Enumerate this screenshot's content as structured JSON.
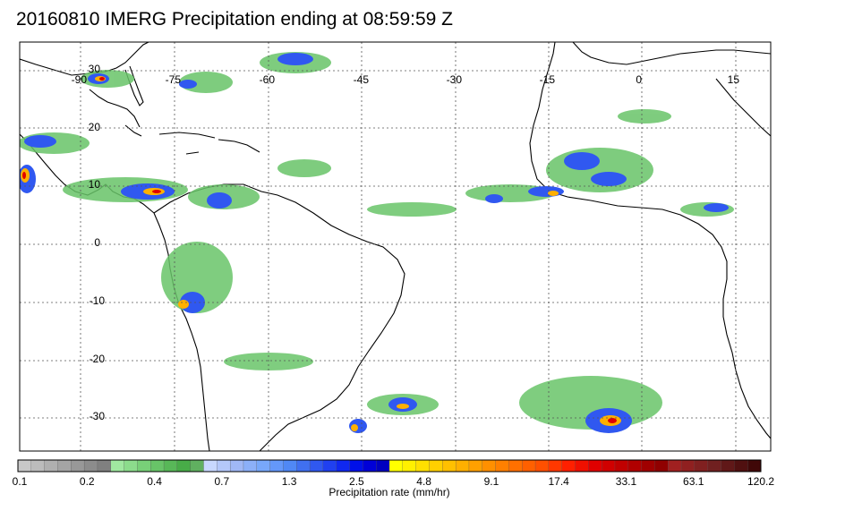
{
  "title": "20160810 IMERG Precipitation ending at 08:59:59 Z",
  "map": {
    "lon_labels": [
      "-90",
      "-75",
      "-60",
      "-45",
      "-30",
      "-15",
      "0",
      "15"
    ],
    "lat_labels": [
      "30",
      "20",
      "10",
      "0",
      "-10",
      "-20",
      "-30"
    ],
    "lon_range": [
      -97,
      23
    ],
    "lat_range": [
      -33,
      35
    ]
  },
  "colorbar": {
    "title": "Precipitation rate (mm/hr)",
    "tick_labels": [
      "0.1",
      "0.2",
      "0.4",
      "0.7",
      "1.3",
      "2.5",
      "4.8",
      "9.1",
      "17.4",
      "33.1",
      "63.1",
      "120.2"
    ],
    "colors": [
      "#c8c8c8",
      "#bcbcbc",
      "#b0b0b0",
      "#a4a4a4",
      "#989898",
      "#8c8c8c",
      "#808080",
      "#a0e8a0",
      "#8cdc8c",
      "#78d078",
      "#68c468",
      "#58b858",
      "#48ac48",
      "#60b060",
      "#c8d8ff",
      "#b4c8fa",
      "#a0b8f5",
      "#8cb0f8",
      "#78a8fa",
      "#6498fa",
      "#5088f5",
      "#4070f0",
      "#3058f0",
      "#2040f0",
      "#1028f0",
      "#0010e8",
      "#0000d8",
      "#0000c0",
      "#ffff00",
      "#fff000",
      "#ffe000",
      "#ffd000",
      "#ffc000",
      "#ffb000",
      "#ffa000",
      "#ff9000",
      "#ff8000",
      "#ff7000",
      "#ff6000",
      "#ff5000",
      "#ff3800",
      "#ff2000",
      "#f01000",
      "#e00000",
      "#d00000",
      "#c00000",
      "#b00000",
      "#a00000",
      "#900000",
      "#a02020",
      "#902020",
      "#802020",
      "#702020",
      "#601818",
      "#501010",
      "#400808"
    ]
  }
}
